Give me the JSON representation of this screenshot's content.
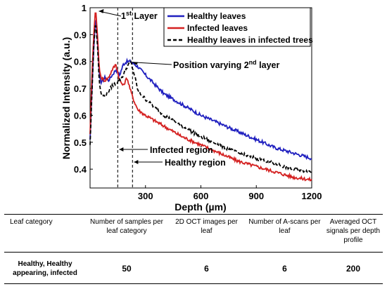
{
  "chart_data": {
    "type": "line",
    "xlabel": "Depth (µm)",
    "ylabel": "Normalized Intensity (a.u.)",
    "xlim": [
      0,
      1200
    ],
    "ylim": [
      0.33,
      1.0
    ],
    "xticks": [
      300,
      600,
      900,
      1200
    ],
    "yticks": [
      0.4,
      0.5,
      0.6,
      0.7,
      0.8,
      0.9,
      1
    ],
    "grid": false,
    "legend_position": "top-right",
    "series": [
      {
        "name": "Healthy leaves",
        "color": "#1f1fbf",
        "style": "solid",
        "x": [
          0,
          10,
          20,
          30,
          40,
          50,
          60,
          80,
          100,
          120,
          140,
          160,
          180,
          200,
          220,
          240,
          260,
          300,
          400,
          500,
          600,
          700,
          800,
          900,
          1000,
          1100,
          1200
        ],
        "y": [
          0.51,
          0.7,
          0.85,
          0.97,
          0.88,
          0.75,
          0.72,
          0.74,
          0.73,
          0.75,
          0.77,
          0.75,
          0.79,
          0.8,
          0.8,
          0.79,
          0.78,
          0.75,
          0.68,
          0.64,
          0.6,
          0.57,
          0.54,
          0.51,
          0.48,
          0.46,
          0.44
        ]
      },
      {
        "name": "Infected leaves",
        "color": "#d42020",
        "style": "solid",
        "x": [
          0,
          10,
          20,
          30,
          40,
          50,
          60,
          80,
          100,
          120,
          140,
          160,
          180,
          200,
          220,
          240,
          260,
          300,
          400,
          500,
          600,
          700,
          800,
          900,
          1000,
          1100,
          1200
        ],
        "y": [
          0.53,
          0.75,
          0.9,
          1.0,
          0.9,
          0.77,
          0.74,
          0.73,
          0.74,
          0.77,
          0.79,
          0.73,
          0.71,
          0.74,
          0.69,
          0.65,
          0.62,
          0.6,
          0.56,
          0.52,
          0.49,
          0.46,
          0.43,
          0.41,
          0.39,
          0.37,
          0.36
        ]
      },
      {
        "name": "Healthy  leaves in infected trees",
        "color": "#000000",
        "style": "dashed",
        "x": [
          0,
          10,
          20,
          30,
          40,
          50,
          60,
          80,
          100,
          120,
          140,
          160,
          180,
          200,
          220,
          240,
          260,
          300,
          400,
          500,
          600,
          700,
          800,
          900,
          1000,
          1100,
          1200
        ],
        "y": [
          0.49,
          0.68,
          0.86,
          0.95,
          0.86,
          0.72,
          0.68,
          0.67,
          0.69,
          0.71,
          0.72,
          0.73,
          0.75,
          0.78,
          0.8,
          0.75,
          0.69,
          0.66,
          0.6,
          0.56,
          0.52,
          0.49,
          0.46,
          0.44,
          0.42,
          0.4,
          0.39
        ]
      }
    ],
    "reference_lines": [
      {
        "x": 150,
        "style": "dashed",
        "label": "Infected region"
      },
      {
        "x": 230,
        "style": "dashed",
        "label": "Healthy region"
      }
    ],
    "annotations": {
      "first_layer": {
        "text": "1",
        "sup": "st",
        "rest": " Layer",
        "x": 40,
        "y": 0.99
      },
      "second_layer": {
        "text": "Position varying 2",
        "sup": "nd",
        "rest": " layer",
        "x": 210,
        "y": 0.8
      }
    }
  },
  "table": {
    "headers": [
      "Leaf category",
      "Number of samples per leaf category",
      "2D OCT images per leaf",
      "Number of A-scans per leaf",
      "Averaged OCT signals per depth profile"
    ],
    "row": {
      "category": "Healthy, Healthy appearing, infected",
      "samples": "50",
      "images": "6",
      "ascans": "6",
      "averaged": "200"
    }
  }
}
